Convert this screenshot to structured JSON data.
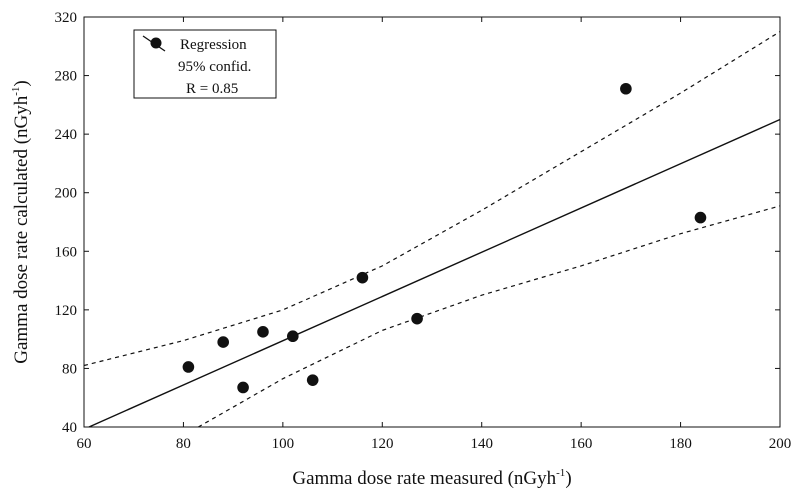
{
  "chart_data": {
    "type": "scatter",
    "xlabel": "Gamma dose rate measured (nGyh",
    "xlabel_sup": "-1",
    "xlabel_end": ")",
    "ylabel": "Gamma dose rate calculated (nGyh",
    "ylabel_sup": "-1",
    "ylabel_end": ")",
    "xlim": [
      60,
      200
    ],
    "ylim": [
      40,
      320
    ],
    "x_ticks": [
      "60",
      "80",
      "100",
      "120",
      "140",
      "160",
      "180",
      "200"
    ],
    "y_ticks": [
      "40",
      "80",
      "120",
      "160",
      "200",
      "240",
      "280",
      "320"
    ],
    "grid": false,
    "legend_position": "top-left",
    "legend": {
      "regression_label": "Regression",
      "confidence_label": "95% confid.",
      "r_label": "R = 0.85"
    },
    "points": [
      {
        "x": 81,
        "y": 81
      },
      {
        "x": 88,
        "y": 98
      },
      {
        "x": 92,
        "y": 67
      },
      {
        "x": 96,
        "y": 105
      },
      {
        "x": 102,
        "y": 102
      },
      {
        "x": 106,
        "y": 72
      },
      {
        "x": 116,
        "y": 142
      },
      {
        "x": 127,
        "y": 114
      },
      {
        "x": 169,
        "y": 271
      },
      {
        "x": 184,
        "y": 183
      }
    ],
    "regression_line": [
      {
        "x": 61,
        "y": 40
      },
      {
        "x": 200,
        "y": 250
      }
    ],
    "confidence_upper": [
      {
        "x": 60,
        "y": 82
      },
      {
        "x": 80,
        "y": 99
      },
      {
        "x": 100,
        "y": 120
      },
      {
        "x": 120,
        "y": 150
      },
      {
        "x": 140,
        "y": 188
      },
      {
        "x": 160,
        "y": 228
      },
      {
        "x": 180,
        "y": 268
      },
      {
        "x": 200,
        "y": 310
      }
    ],
    "confidence_lower": [
      {
        "x": 83,
        "y": 40
      },
      {
        "x": 100,
        "y": 73
      },
      {
        "x": 120,
        "y": 106
      },
      {
        "x": 140,
        "y": 130
      },
      {
        "x": 160,
        "y": 150
      },
      {
        "x": 180,
        "y": 172
      },
      {
        "x": 200,
        "y": 191
      }
    ],
    "colors": {
      "marks": "#111111",
      "background": "#ffffff"
    }
  }
}
